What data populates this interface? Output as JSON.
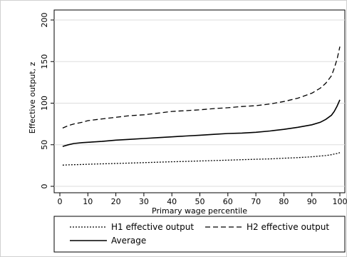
{
  "chart_data": {
    "type": "line",
    "xlabel": "Primary wage percentile",
    "ylabel": "Effective output, z",
    "xlim": [
      0,
      100
    ],
    "ylim": [
      0,
      200
    ],
    "xticks": [
      "0",
      "10",
      "20",
      "30",
      "40",
      "50",
      "60",
      "70",
      "80",
      "90",
      "100"
    ],
    "yticks": [
      "0",
      "50",
      "100",
      "150",
      "200"
    ],
    "grid": "horizontal",
    "legend_position": "bottom",
    "x": [
      1,
      3,
      5,
      8,
      10,
      15,
      20,
      25,
      30,
      35,
      40,
      45,
      50,
      55,
      60,
      65,
      70,
      75,
      80,
      85,
      90,
      93,
      95,
      97,
      98,
      99,
      100
    ],
    "series": [
      {
        "name": "H1 effective output",
        "style": "dotted",
        "values": [
          25.5,
          25.8,
          26.0,
          26.3,
          26.5,
          27.0,
          27.5,
          28.0,
          28.5,
          29.0,
          29.5,
          30.0,
          30.5,
          31.0,
          31.5,
          32.0,
          32.5,
          33.0,
          33.8,
          34.5,
          35.5,
          36.5,
          37.0,
          38.0,
          38.8,
          39.5,
          40.5
        ]
      },
      {
        "name": "H2 effective output",
        "style": "dashed",
        "values": [
          70,
          73,
          75,
          77,
          79,
          81,
          83,
          85,
          86,
          88,
          90,
          91,
          92,
          93.5,
          94.5,
          96,
          97,
          99,
          102,
          106,
          112,
          118,
          124,
          133,
          142,
          153,
          168
        ]
      },
      {
        "name": "Average",
        "style": "solid",
        "values": [
          48,
          50,
          51.5,
          52.5,
          53,
          54,
          55.5,
          56.5,
          57.5,
          58.5,
          59.5,
          60.5,
          61.5,
          62.5,
          63.5,
          64,
          65,
          66.5,
          68.5,
          71,
          74,
          77,
          80.5,
          85.5,
          90,
          96.5,
          104
        ]
      }
    ]
  }
}
